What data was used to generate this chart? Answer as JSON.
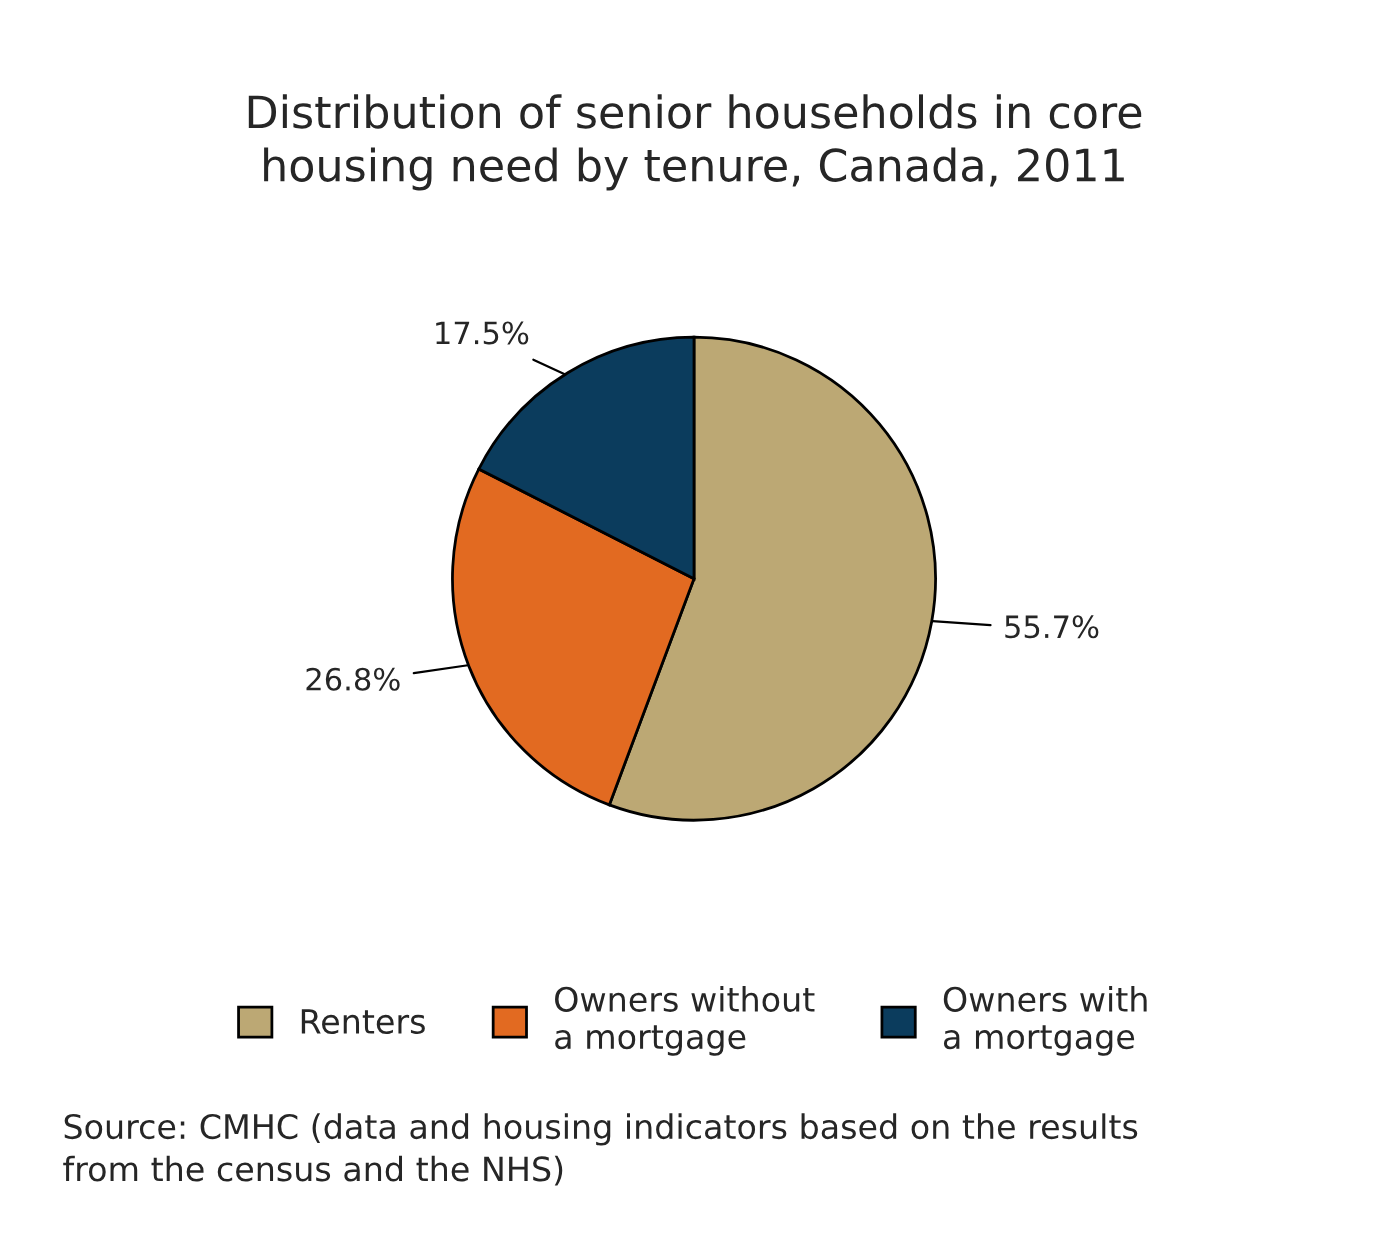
{
  "chart_data": {
    "type": "pie",
    "title": "Distribution of senior households in core\nhousing need by tenure, Canada, 2011",
    "categories": [
      "Renters",
      "Owners without\na mortgage",
      "Owners with\na mortgage"
    ],
    "values": [
      55.7,
      26.8,
      17.5
    ],
    "colors": [
      "#bca874",
      "#e26a21",
      "#0b3c5d"
    ],
    "value_labels": [
      "55.7%",
      "26.8%",
      "17.5%"
    ],
    "legend": "bottom",
    "annotations": [
      "Source: CMHC (data and housing indicators based on the results\nfrom the census and the NHS)"
    ]
  }
}
